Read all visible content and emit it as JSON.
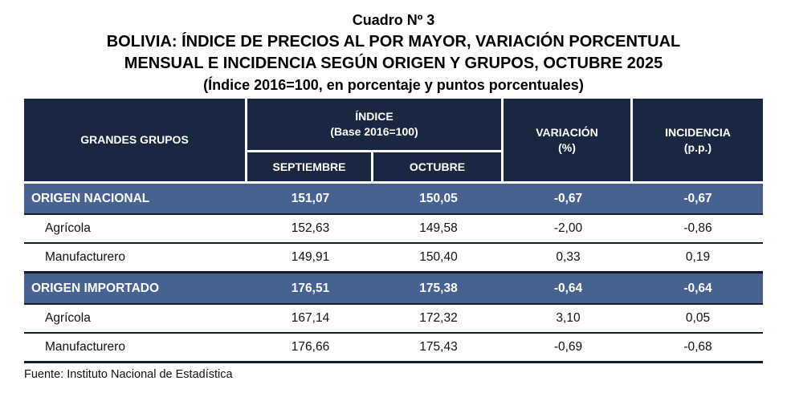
{
  "title": {
    "line1": "Cuadro Nº 3",
    "line2": "BOLIVIA: ÍNDICE DE PRECIOS AL POR MAYOR, VARIACIÓN PORCENTUAL",
    "line3": "MENSUAL E INCIDENCIA SEGÚN ORIGEN Y GRUPOS, OCTUBRE 2025",
    "line4": "(Índice 2016=100, en porcentaje y puntos porcentuales)"
  },
  "table": {
    "header": {
      "grandes_grupos": "GRANDES GRUPOS",
      "indice_line1": "ÍNDICE",
      "indice_line2": "(Base 2016=100)",
      "septiembre": "SEPTIEMBRE",
      "octubre": "OCTUBRE",
      "variacion_line1": "VARIACIÓN",
      "variacion_line2": "(%)",
      "incidencia_line1": "INCIDENCIA",
      "incidencia_line2": "(p.p.)"
    },
    "rows": [
      {
        "label": "ORIGEN NACIONAL",
        "septiembre": "151,07",
        "octubre": "150,05",
        "variacion": "-0,67",
        "incidencia": "-0,67",
        "type": "group"
      },
      {
        "label": "Agrícola",
        "septiembre": "152,63",
        "octubre": "149,58",
        "variacion": "-2,00",
        "incidencia": "-0,86",
        "type": "item"
      },
      {
        "label": "Manufacturero",
        "septiembre": "149,91",
        "octubre": "150,40",
        "variacion": "0,33",
        "incidencia": "0,19",
        "type": "item"
      },
      {
        "label": "ORIGEN IMPORTADO",
        "septiembre": "176,51",
        "octubre": "175,38",
        "variacion": "-0,64",
        "incidencia": "-0,64",
        "type": "group"
      },
      {
        "label": "Agrícola",
        "septiembre": "167,14",
        "octubre": "172,32",
        "variacion": "3,10",
        "incidencia": "0,05",
        "type": "item"
      },
      {
        "label": "Manufacturero",
        "septiembre": "176,66",
        "octubre": "175,43",
        "variacion": "-0,69",
        "incidencia": "-0,68",
        "type": "item"
      }
    ],
    "source": "Fuente: Instituto Nacional de Estadística"
  },
  "colors": {
    "header_bg": "#1a2740",
    "group_row_bg": "#47628e",
    "header_text": "#ffffff",
    "body_text": "#111111",
    "row_border": "#121c2b"
  }
}
